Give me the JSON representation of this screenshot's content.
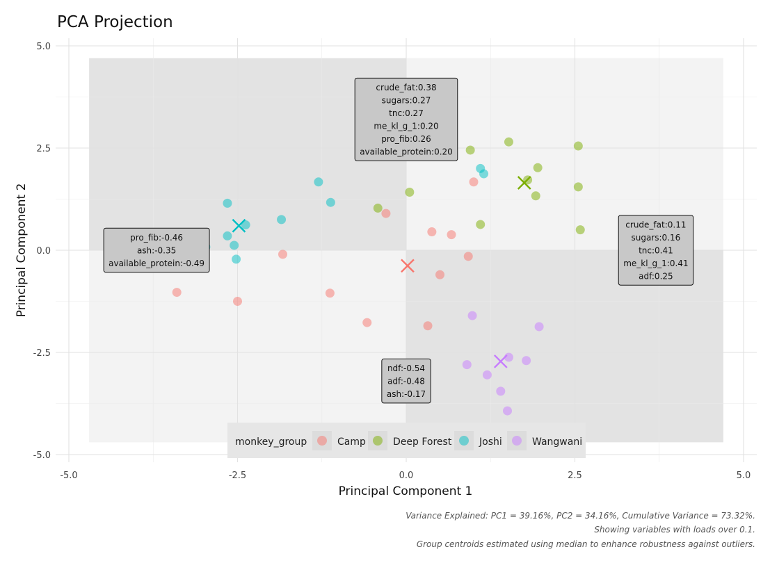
{
  "chart_data": {
    "type": "scatter",
    "title": "PCA Projection",
    "xlabel": "Principal Component 1",
    "ylabel": "Principal Component 2",
    "xlim": [
      -5,
      5
    ],
    "ylim": [
      -5,
      5
    ],
    "xticks": [
      -5.0,
      -2.5,
      0.0,
      2.5,
      5.0
    ],
    "yticks": [
      -5.0,
      -2.5,
      0.0,
      2.5,
      5.0
    ],
    "xtick_labels": [
      "-5.0",
      "-2.5",
      "0.0",
      "2.5",
      "5.0"
    ],
    "ytick_labels": [
      "-5.0",
      "-2.5",
      "0.0",
      "2.5",
      "5.0"
    ],
    "grid": true,
    "legend": {
      "title": "monkey_group",
      "position": "bottom",
      "entries": [
        "Camp",
        "Deep Forest",
        "Joshi",
        "Wangwani"
      ]
    },
    "series": [
      {
        "name": "Camp",
        "color": "#F8766D",
        "points": [
          [
            -0.3,
            0.9
          ],
          [
            0.38,
            0.45
          ],
          [
            0.67,
            0.38
          ],
          [
            1.0,
            1.67
          ],
          [
            0.92,
            -0.15
          ],
          [
            0.5,
            -0.6
          ],
          [
            -1.83,
            -0.1
          ],
          [
            -1.13,
            -1.05
          ],
          [
            -3.4,
            -1.03
          ],
          [
            -2.5,
            -1.25
          ],
          [
            -0.58,
            -1.77
          ],
          [
            0.32,
            -1.85
          ]
        ],
        "centroid": [
          0.02,
          -0.38
        ]
      },
      {
        "name": "Deep Forest",
        "color": "#7CAE00",
        "points": [
          [
            0.05,
            1.42
          ],
          [
            -0.42,
            1.03
          ],
          [
            0.95,
            2.45
          ],
          [
            1.52,
            2.65
          ],
          [
            1.1,
            0.63
          ],
          [
            1.8,
            1.72
          ],
          [
            1.95,
            2.02
          ],
          [
            1.92,
            1.33
          ],
          [
            2.55,
            2.55
          ],
          [
            2.55,
            1.55
          ],
          [
            2.58,
            0.5
          ]
        ],
        "centroid": [
          1.75,
          1.65
        ]
      },
      {
        "name": "Joshi",
        "color": "#00BFC4",
        "points": [
          [
            -1.3,
            1.67
          ],
          [
            -1.12,
            1.17
          ],
          [
            -1.85,
            0.75
          ],
          [
            -2.65,
            1.15
          ],
          [
            -2.38,
            0.62
          ],
          [
            -2.65,
            0.35
          ],
          [
            -2.55,
            0.12
          ],
          [
            -2.52,
            -0.22
          ],
          [
            -2.97,
            0.08
          ],
          [
            -3.42,
            -0.12
          ],
          [
            -3.82,
            0.1
          ],
          [
            1.1,
            2.0
          ],
          [
            1.15,
            1.87
          ]
        ],
        "centroid": [
          -2.48,
          0.6
        ]
      },
      {
        "name": "Wangwani",
        "color": "#C77CFF",
        "points": [
          [
            0.98,
            -1.6
          ],
          [
            1.97,
            -1.87
          ],
          [
            1.52,
            -2.62
          ],
          [
            1.78,
            -2.7
          ],
          [
            0.9,
            -2.8
          ],
          [
            1.2,
            -3.05
          ],
          [
            1.4,
            -3.45
          ],
          [
            1.5,
            -3.93
          ]
        ],
        "centroid": [
          1.4,
          -2.72
        ]
      }
    ],
    "annotations": [
      {
        "name": "top",
        "x": 0.0,
        "y": 3.2,
        "lines": [
          "crude_fat:0.38",
          "sugars:0.27",
          "tnc:0.27",
          "me_kl_g_1:0.20",
          "pro_fib:0.26",
          "available_protein:0.20"
        ]
      },
      {
        "name": "left",
        "x": -3.7,
        "y": 0.0,
        "lines": [
          "pro_fib:-0.46",
          "ash:-0.35",
          "available_protein:-0.49"
        ]
      },
      {
        "name": "right",
        "x": 3.7,
        "y": -0.0,
        "lines": [
          "crude_fat:0.11",
          "sugars:0.16",
          "tnc:0.41",
          "me_kl_g_1:0.41",
          "adf:0.25"
        ]
      },
      {
        "name": "bottom",
        "x": 0.0,
        "y": -3.2,
        "lines": [
          "ndf:-0.54",
          "adf:-0.48",
          "ash:-0.17"
        ]
      }
    ],
    "quadrant_shading": {
      "extent": 4.7,
      "dark": "#e3e3e3",
      "light": "#f3f3f3"
    },
    "caption": [
      "Variance Explained: PC1 = 39.16%, PC2 = 34.16%, Cumulative Variance = 73.32%.",
      "Showing variables with loads over 0.1.",
      "Group centroids estimated using median to enhance robustness against outliers."
    ]
  }
}
